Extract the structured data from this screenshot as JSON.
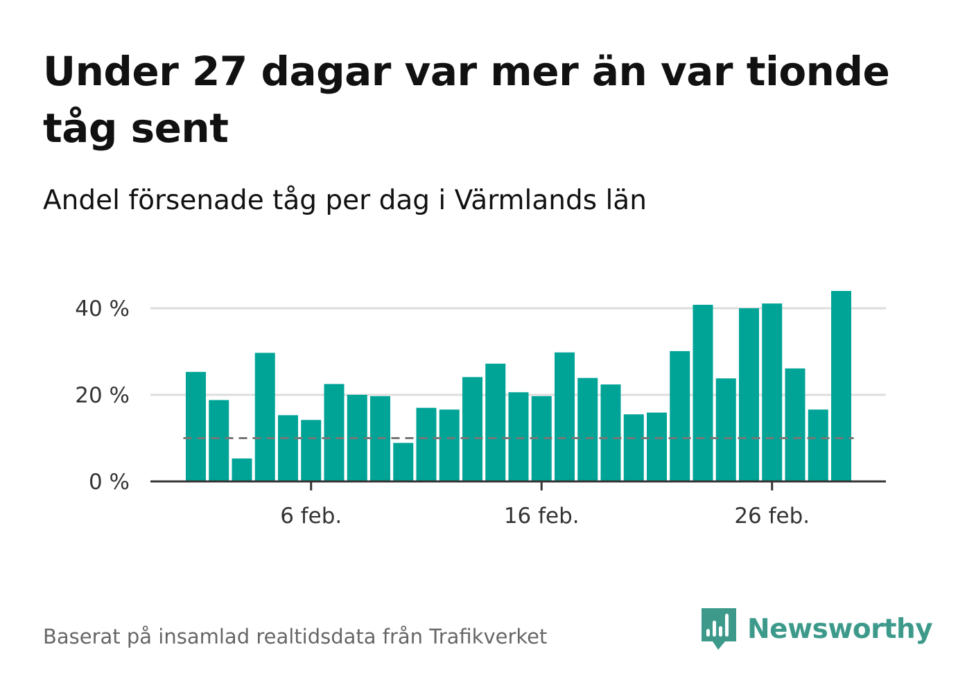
{
  "title": "Under 27 dagar var mer än var tionde tåg sent",
  "subtitle": "Andel försenade tåg per dag i Värmlands län",
  "source": "Baserat på insamlad realtidsdata från Trafikverket",
  "brand": {
    "name": "Newsworthy",
    "icon": "newsworthy-logo-icon",
    "color": "#3d9a8b"
  },
  "colors": {
    "bar": "#00a497",
    "reference_line": "#777777",
    "grid": "#dddddd",
    "axis": "#333333",
    "tick_label": "#333333"
  },
  "chart_data": {
    "type": "bar",
    "x_start_day": 1,
    "x_end_day": 29,
    "xticks": [
      {
        "day": 6,
        "label": "6 feb."
      },
      {
        "day": 16,
        "label": "16 feb."
      },
      {
        "day": 26,
        "label": "26 feb."
      }
    ],
    "yticks": [
      {
        "value": 0,
        "label": "0 %"
      },
      {
        "value": 20,
        "label": "20 %"
      },
      {
        "value": 40,
        "label": "40 %"
      }
    ],
    "ylim": [
      0,
      44
    ],
    "reference_line": 10,
    "grid": true,
    "series": [
      {
        "values": [
          25.3,
          18.8,
          5.3,
          29.7,
          15.3,
          14.2,
          22.5,
          20.0,
          19.7,
          8.9,
          17.0,
          16.6,
          24.1,
          27.2,
          20.6,
          19.7,
          29.8,
          23.9,
          22.4,
          15.5,
          15.9,
          30.1,
          40.8,
          23.8,
          40.0,
          41.1,
          26.1,
          16.6,
          44.0
        ]
      }
    ]
  }
}
